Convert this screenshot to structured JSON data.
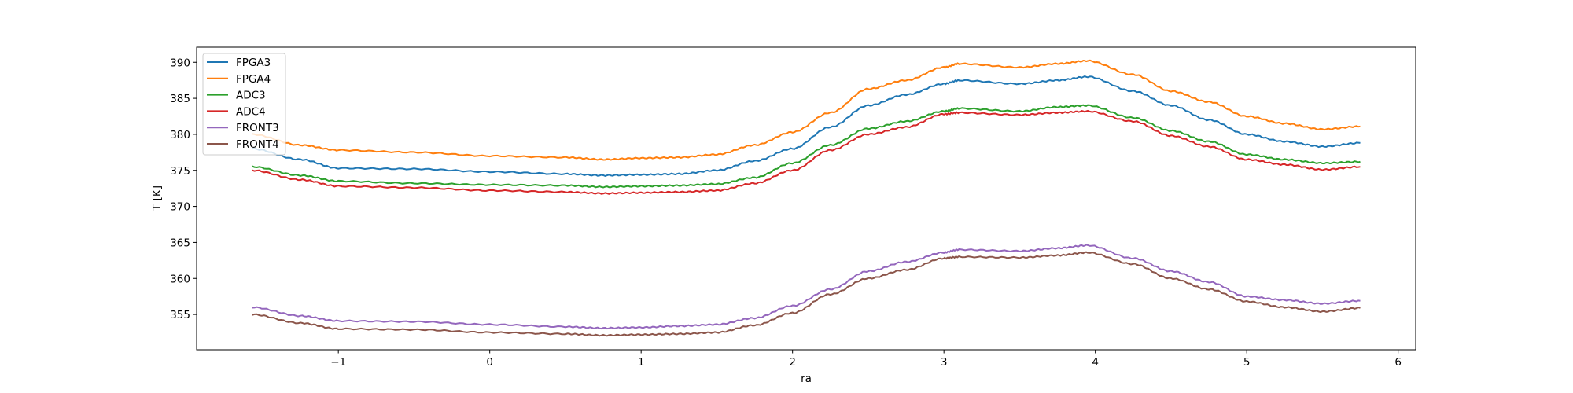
{
  "chart_data": {
    "type": "line",
    "title": "",
    "xlabel": "ra",
    "ylabel": "T [K]",
    "xlim": [
      -1.936,
      6.116
    ],
    "ylim": [
      350.1,
      392.1
    ],
    "xticks": [
      -1,
      0,
      1,
      2,
      3,
      4,
      5,
      6
    ],
    "yticks": [
      355,
      360,
      365,
      370,
      375,
      380,
      385,
      390
    ],
    "grid": false,
    "legend_position": "top-left",
    "x": [
      -1.57,
      -1.25,
      -1,
      -0.5,
      0,
      0.5,
      0.75,
      1,
      1.25,
      1.5,
      1.75,
      2,
      2.25,
      2.5,
      2.75,
      3,
      3.1,
      3.5,
      3.75,
      3.95,
      4.25,
      4.5,
      4.75,
      5,
      5.25,
      5.5,
      5.75
    ],
    "series": [
      {
        "name": "FPGA3",
        "color": "#1f77b4",
        "values": [
          378,
          376.5,
          375.3,
          375.2,
          374.8,
          374.5,
          374.3,
          374.4,
          374.5,
          375,
          376.3,
          378,
          381,
          384,
          385.5,
          387,
          387.5,
          387,
          387.5,
          388,
          386,
          384,
          382,
          380,
          379,
          378.3,
          378.8
        ]
      },
      {
        "name": "FPGA4",
        "color": "#ff7f0e",
        "values": [
          380,
          378.5,
          377.8,
          377.5,
          377,
          376.8,
          376.5,
          376.7,
          376.8,
          377.2,
          378.5,
          380.3,
          383,
          386.3,
          387.5,
          389.3,
          389.8,
          389.3,
          389.8,
          390.2,
          388.3,
          386,
          384.5,
          382.5,
          381.5,
          380.7,
          381.1
        ]
      },
      {
        "name": "ADC3",
        "color": "#2ca02c",
        "values": [
          375.5,
          374.3,
          373.5,
          373.2,
          373,
          372.9,
          372.7,
          372.8,
          372.9,
          373.1,
          374,
          376,
          378.5,
          380.8,
          381.8,
          383.2,
          383.6,
          383.2,
          383.8,
          384,
          382.3,
          380.5,
          379,
          377.2,
          376.5,
          376,
          376.2
        ]
      },
      {
        "name": "ADC4",
        "color": "#d62728",
        "values": [
          375,
          373.7,
          372.8,
          372.6,
          372.2,
          372,
          371.8,
          371.9,
          372,
          372.2,
          373.2,
          375,
          377.8,
          380,
          381,
          382.8,
          383,
          382.7,
          383,
          383.2,
          381.8,
          379.8,
          378.3,
          376.5,
          375.8,
          375.1,
          375.5
        ]
      },
      {
        "name": "FRONT3",
        "color": "#9467bd",
        "values": [
          356,
          354.8,
          354.1,
          354,
          353.6,
          353.3,
          353.1,
          353.2,
          353.4,
          353.6,
          354.5,
          356.2,
          358.5,
          361,
          362.3,
          363.6,
          364,
          363.8,
          364.2,
          364.6,
          362.8,
          361,
          359.5,
          357.5,
          357,
          356.5,
          356.9
        ]
      },
      {
        "name": "FRONT4",
        "color": "#8c564b",
        "values": [
          355,
          353.8,
          353,
          352.9,
          352.5,
          352.3,
          352.1,
          352.2,
          352.3,
          352.5,
          353.5,
          355.2,
          357.8,
          360,
          361.2,
          362.8,
          363,
          362.9,
          363.2,
          363.6,
          362,
          360,
          358.5,
          356.8,
          356,
          355.4,
          355.9
        ]
      }
    ]
  }
}
